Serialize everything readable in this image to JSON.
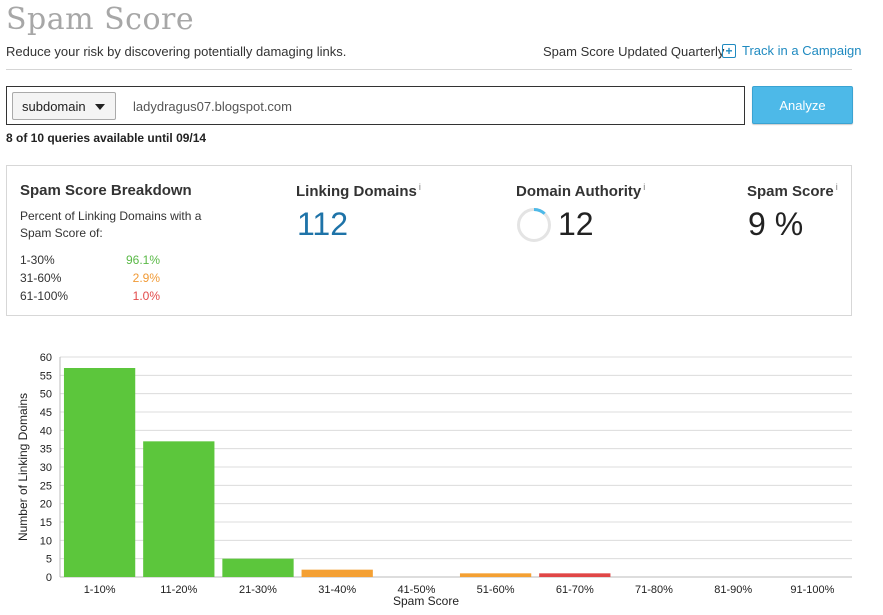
{
  "header": {
    "title": "Spam Score",
    "subtitle": "Reduce your risk by discovering potentially damaging links.",
    "updated_note": "Spam Score Updated Quarterly",
    "track_label": "Track in a Campaign"
  },
  "search": {
    "scope": "subdomain",
    "query": "ladydragus07.blogspot.com",
    "analyze_label": "Analyze",
    "quota_text": "8 of 10 queries available until 09/14"
  },
  "breakdown": {
    "heading": "Spam Score Breakdown",
    "description": "Percent of Linking Domains with a Spam Score of:",
    "rows": [
      {
        "range": "1-30%",
        "percent": "96.1%",
        "color": "#5ab947"
      },
      {
        "range": "31-60%",
        "percent": "2.9%",
        "color": "#f19a35"
      },
      {
        "range": "61-100%",
        "percent": "1.0%",
        "color": "#e24a4a"
      }
    ]
  },
  "metrics": {
    "linking_domains": {
      "label": "Linking Domains",
      "info": "i",
      "value": "112",
      "color": "#1e73a8"
    },
    "domain_authority": {
      "label": "Domain Authority",
      "info": "i",
      "value": "12",
      "level": 12,
      "ring_color": "#4db9e8"
    },
    "spam_score": {
      "label": "Spam Score",
      "info": "i",
      "value": "9 %"
    }
  },
  "chart_data": {
    "type": "bar",
    "xlabel": "Spam Score",
    "ylabel": "Number of Linking Domains",
    "ylim": [
      0,
      60
    ],
    "yticks": [
      0,
      5,
      10,
      15,
      20,
      25,
      30,
      35,
      40,
      45,
      50,
      55,
      60
    ],
    "grid": true,
    "categories": [
      "1-10%",
      "11-20%",
      "21-30%",
      "31-40%",
      "41-50%",
      "51-60%",
      "61-70%",
      "71-80%",
      "81-90%",
      "91-100%"
    ],
    "values": [
      57,
      37,
      5,
      2,
      0,
      1,
      1,
      0,
      0,
      0
    ],
    "colors": [
      "#5cc63c",
      "#5cc63c",
      "#5cc63c",
      "#f4a033",
      "#f4a033",
      "#f4a033",
      "#e04646",
      "#e04646",
      "#e04646",
      "#e04646"
    ]
  }
}
